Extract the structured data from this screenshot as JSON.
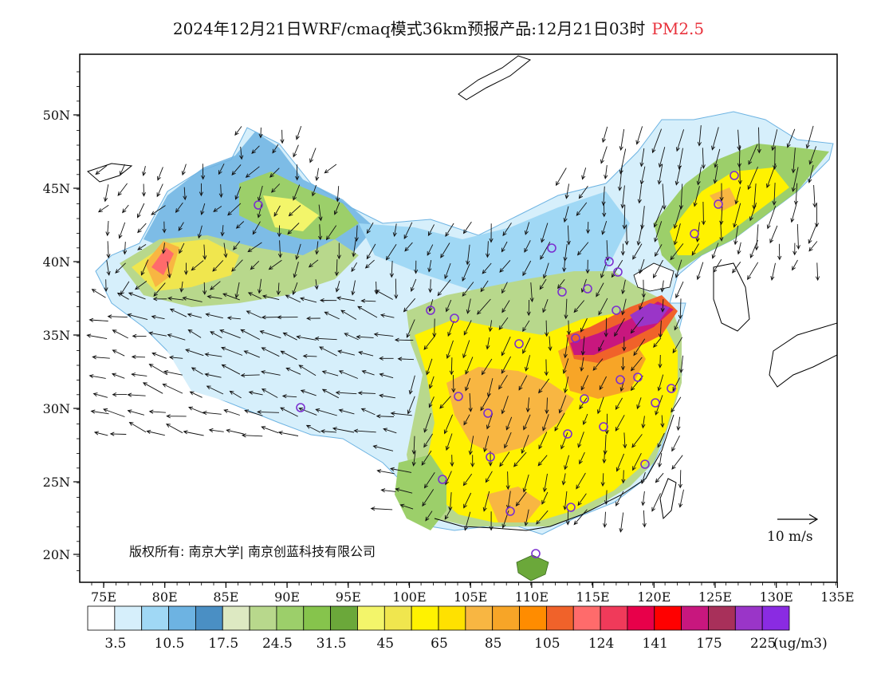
{
  "header": {
    "title": "2024年12月21日WRF/cmaq模式36km预报产品:12月21日03时",
    "variable": "PM2.5"
  },
  "map": {
    "lat_labels": [
      "50N",
      "45N",
      "40N",
      "35N",
      "30N",
      "25N",
      "20N"
    ],
    "lon_labels": [
      "75E",
      "80E",
      "85E",
      "90E",
      "95E",
      "100E",
      "105E",
      "110E",
      "115E",
      "120E",
      "125E",
      "130E",
      "135E"
    ],
    "copyright": "版权所有: 南京大学| 南京创蓝科技有限公司",
    "wind_scale_label": "10 m/s",
    "city_markers_color": "#7b2fd0"
  },
  "legend": {
    "unit": "(ug/m3)",
    "colors": [
      "#ffffff",
      "#d6effb",
      "#a0d8f5",
      "#6db3e2",
      "#4a8fc4",
      "#dde9c2",
      "#b8d88c",
      "#9ccf6a",
      "#86c44c",
      "#6ba83a",
      "#f3f56a",
      "#f0e64e",
      "#fff200",
      "#ffe100",
      "#f8b642",
      "#f7a527",
      "#ff8c00",
      "#f0622a",
      "#ff6b6b",
      "#f03a5a",
      "#e8004a",
      "#ff0000",
      "#c8177e",
      "#a8305a",
      "#9a35c8",
      "#8a2be2"
    ],
    "tick_labels": [
      "3.5",
      "10.5",
      "17.5",
      "24.5",
      "31.5",
      "45",
      "65",
      "85",
      "105",
      "124",
      "141",
      "175",
      "225"
    ]
  }
}
